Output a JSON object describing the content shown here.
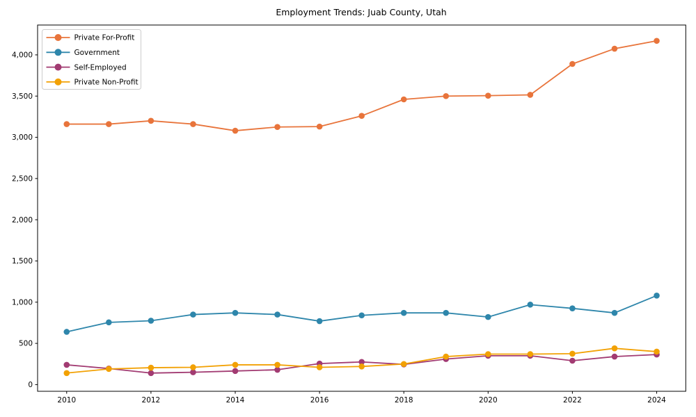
{
  "chart_data": {
    "type": "line",
    "title": "Employment Trends: Juab County, Utah",
    "xlabel": "",
    "ylabel": "",
    "x": [
      2010,
      2011,
      2012,
      2013,
      2014,
      2015,
      2016,
      2017,
      2018,
      2019,
      2020,
      2021,
      2022,
      2023,
      2024
    ],
    "series": [
      {
        "name": "Private For-Profit",
        "color": "#E8743B",
        "values": [
          3160,
          3160,
          3200,
          3160,
          3080,
          3125,
          3130,
          3260,
          3460,
          3500,
          3505,
          3515,
          3890,
          4075,
          4170
        ]
      },
      {
        "name": "Government",
        "color": "#2E86AB",
        "values": [
          640,
          755,
          775,
          850,
          870,
          850,
          770,
          840,
          870,
          870,
          820,
          970,
          925,
          870,
          1080
        ]
      },
      {
        "name": "Self-Employed",
        "color": "#A23B72",
        "values": [
          240,
          195,
          140,
          150,
          165,
          180,
          255,
          275,
          245,
          310,
          350,
          350,
          290,
          340,
          365
        ]
      },
      {
        "name": "Private Non-Profit",
        "color": "#F2A104",
        "values": [
          140,
          190,
          205,
          210,
          240,
          240,
          210,
          220,
          250,
          340,
          370,
          370,
          375,
          440,
          400
        ]
      }
    ],
    "xticks": {
      "values": [
        2010,
        2012,
        2014,
        2016,
        2018,
        2020,
        2022,
        2024
      ],
      "labels": [
        "2010",
        "2012",
        "2014",
        "2016",
        "2018",
        "2020",
        "2022",
        "2024"
      ]
    },
    "yticks": {
      "values": [
        0,
        500,
        1000,
        1500,
        2000,
        2500,
        3000,
        3500,
        4000
      ],
      "labels": [
        "0",
        "500",
        "1,000",
        "1,500",
        "2,000",
        "2,500",
        "3,000",
        "3,500",
        "4,000"
      ]
    },
    "xlim": [
      2009.31,
      2024.69
    ],
    "ylim": [
      -81,
      4362
    ],
    "grid": false,
    "legend_position": "upper-left",
    "axis_color": "#000000",
    "text_color": "#000000",
    "background": "#ffffff"
  }
}
